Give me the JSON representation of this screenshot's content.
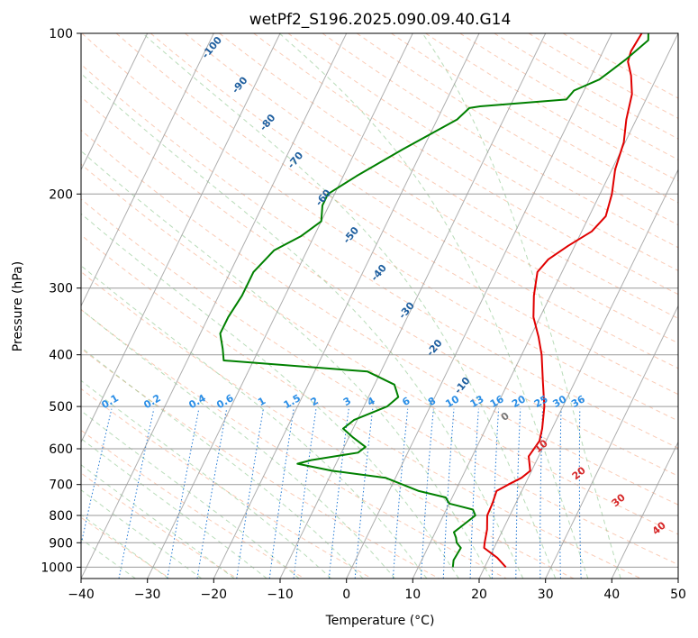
{
  "chart_data": {
    "type": "line",
    "chart_kind": "skew-t log-p",
    "title": "wetPf2_S196.2025.090.09.40.G14",
    "xlabel": "Temperature (°C)",
    "ylabel": "Pressure (hPa)",
    "xlim": [
      -40,
      50
    ],
    "ylim": [
      1050,
      100
    ],
    "y_scale": "log",
    "x_ticks": [
      "−40",
      "−30",
      "−20",
      "−10",
      "0",
      "10",
      "20",
      "30",
      "40",
      "50"
    ],
    "y_ticks": [
      "100",
      "200",
      "300",
      "400",
      "500",
      "600",
      "700",
      "800",
      "900",
      "1000"
    ],
    "grid": true,
    "dry_adiabat_labels": [
      "-100",
      "-90",
      "-80",
      "-70",
      "-60",
      "-50",
      "-40",
      "-30",
      "-20",
      "-10"
    ],
    "mixing_ratio_labels": [
      "0.1",
      "0.2",
      "0.4",
      "0.6",
      "1",
      "1.5",
      "2",
      "3",
      "4",
      "6",
      "8",
      "10",
      "13",
      "16",
      "20",
      "25",
      "30",
      "36"
    ],
    "moist_adiabat_labels": [
      "0",
      "10",
      "20",
      "30",
      "40"
    ],
    "series": [
      {
        "role": "temperature",
        "color": "#e00000",
        "points": [
          [
            23.2,
            1000
          ],
          [
            21.2,
            960
          ],
          [
            18.5,
            920
          ],
          [
            18.2,
            900
          ],
          [
            17.6,
            850
          ],
          [
            16.6,
            800
          ],
          [
            16.5,
            760
          ],
          [
            16.2,
            720
          ],
          [
            17.5,
            700
          ],
          [
            19.0,
            680
          ],
          [
            19.8,
            660
          ],
          [
            18.5,
            620
          ],
          [
            19.0,
            580
          ],
          [
            18.5,
            550
          ],
          [
            17.2,
            500
          ],
          [
            15.2,
            450
          ],
          [
            13.0,
            400
          ],
          [
            11.2,
            370
          ],
          [
            9.0,
            340
          ],
          [
            7.5,
            310
          ],
          [
            6.3,
            280
          ],
          [
            7.0,
            265
          ],
          [
            9.0,
            250
          ],
          [
            11.5,
            235
          ],
          [
            12.5,
            220
          ],
          [
            11.8,
            200
          ],
          [
            10.5,
            180
          ],
          [
            9.8,
            160
          ],
          [
            8.5,
            145
          ],
          [
            7.5,
            130
          ],
          [
            6.0,
            120
          ],
          [
            4.5,
            113
          ],
          [
            4.2,
            108
          ],
          [
            4.5,
            100
          ]
        ]
      },
      {
        "role": "dewpoint",
        "color": "#008000",
        "points": [
          [
            15.2,
            1000
          ],
          [
            14.8,
            970
          ],
          [
            15.0,
            920
          ],
          [
            14.0,
            900
          ],
          [
            13.5,
            880
          ],
          [
            12.8,
            860
          ],
          [
            14.8,
            800
          ],
          [
            14.0,
            780
          ],
          [
            10.0,
            760
          ],
          [
            9.0,
            740
          ],
          [
            4.5,
            720
          ],
          [
            -1.5,
            680
          ],
          [
            -10.0,
            660
          ],
          [
            -15.8,
            640
          ],
          [
            -14.0,
            630
          ],
          [
            -7.5,
            610
          ],
          [
            -6.8,
            595
          ],
          [
            -9.5,
            570
          ],
          [
            -11.5,
            550
          ],
          [
            -10.5,
            530
          ],
          [
            -6.5,
            500
          ],
          [
            -5.5,
            480
          ],
          [
            -7.0,
            455
          ],
          [
            -12.0,
            430
          ],
          [
            -34.5,
            410
          ],
          [
            -35.5,
            390
          ],
          [
            -37.0,
            365
          ],
          [
            -37.0,
            340
          ],
          [
            -36.5,
            310
          ],
          [
            -36.5,
            280
          ],
          [
            -35.0,
            255
          ],
          [
            -32.0,
            240
          ],
          [
            -30.0,
            225
          ],
          [
            -31.0,
            210
          ],
          [
            -31.0,
            200
          ],
          [
            -28.0,
            185
          ],
          [
            -23.0,
            165
          ],
          [
            -17.0,
            145
          ],
          [
            -16.0,
            138
          ],
          [
            -14.5,
            137
          ],
          [
            -2.0,
            133
          ],
          [
            -1.5,
            128
          ],
          [
            1.5,
            122
          ],
          [
            2.5,
            118
          ],
          [
            4.0,
            112
          ],
          [
            6.0,
            103
          ],
          [
            5.5,
            100
          ]
        ]
      }
    ]
  }
}
